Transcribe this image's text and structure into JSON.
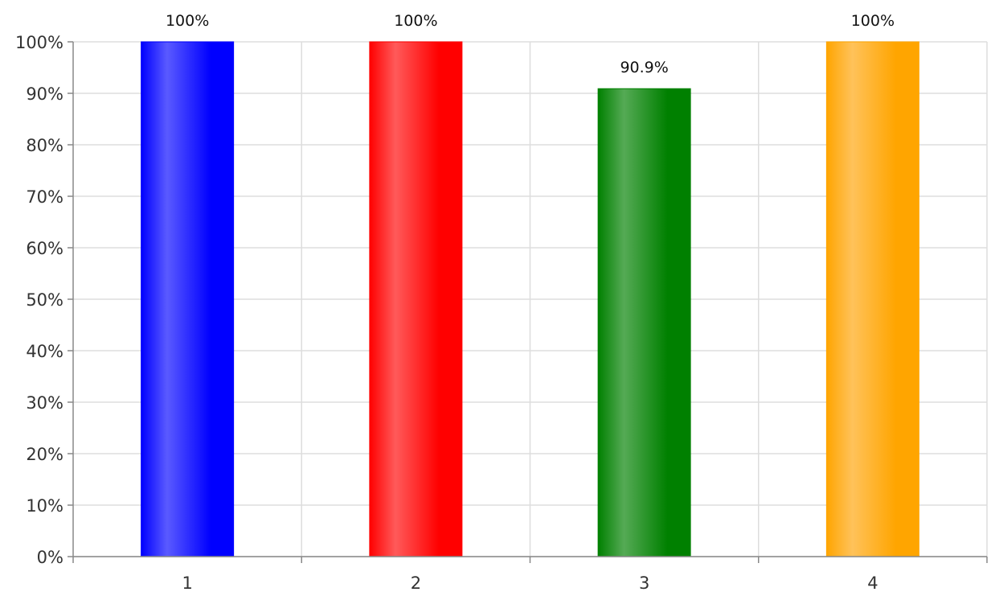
{
  "chart_data": {
    "type": "bar",
    "categories": [
      "1",
      "2",
      "3",
      "4"
    ],
    "values": [
      100,
      100,
      90.9,
      100
    ],
    "data_labels": [
      "100%",
      "100%",
      "90.9%",
      "100%"
    ],
    "ylim": [
      0,
      100
    ],
    "y_ticks": [
      0,
      10,
      20,
      30,
      40,
      50,
      60,
      70,
      80,
      90,
      100
    ],
    "y_tick_labels": [
      "0%",
      "10%",
      "20%",
      "30%",
      "40%",
      "50%",
      "60%",
      "70%",
      "80%",
      "90%",
      "100%"
    ],
    "bar_colors": [
      "#0000ff",
      "#ff0000",
      "#008000",
      "#ffa500"
    ],
    "bar_highlight_colors": [
      "#5a5aff",
      "#ff5a5a",
      "#55aa55",
      "#ffc25a"
    ],
    "grid": true,
    "legend": false
  }
}
